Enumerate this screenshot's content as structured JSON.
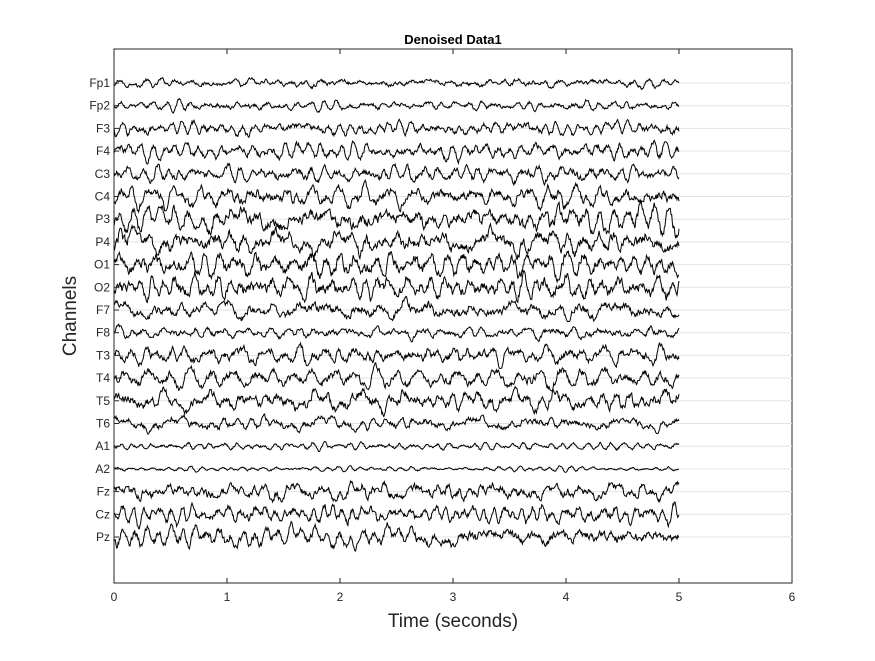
{
  "chart_data": {
    "type": "line",
    "title": "Denoised Data1",
    "xlabel": "Time (seconds)",
    "ylabel": "Channels",
    "xlim": [
      0,
      6
    ],
    "xticks": [
      "0",
      "1",
      "2",
      "3",
      "4",
      "5",
      "6"
    ],
    "channels": [
      "Fp1",
      "Fp2",
      "F3",
      "F4",
      "C3",
      "C4",
      "P3",
      "P4",
      "O1",
      "O2",
      "F7",
      "F8",
      "T3",
      "T4",
      "T5",
      "T6",
      "A1",
      "A2",
      "Fz",
      "Cz",
      "Pz"
    ],
    "signal_duration_s": 5,
    "grid": "horizontal at channels",
    "colors": {
      "trace": "#000000",
      "axes": "#262626",
      "grid": "#e3e3e3"
    }
  }
}
